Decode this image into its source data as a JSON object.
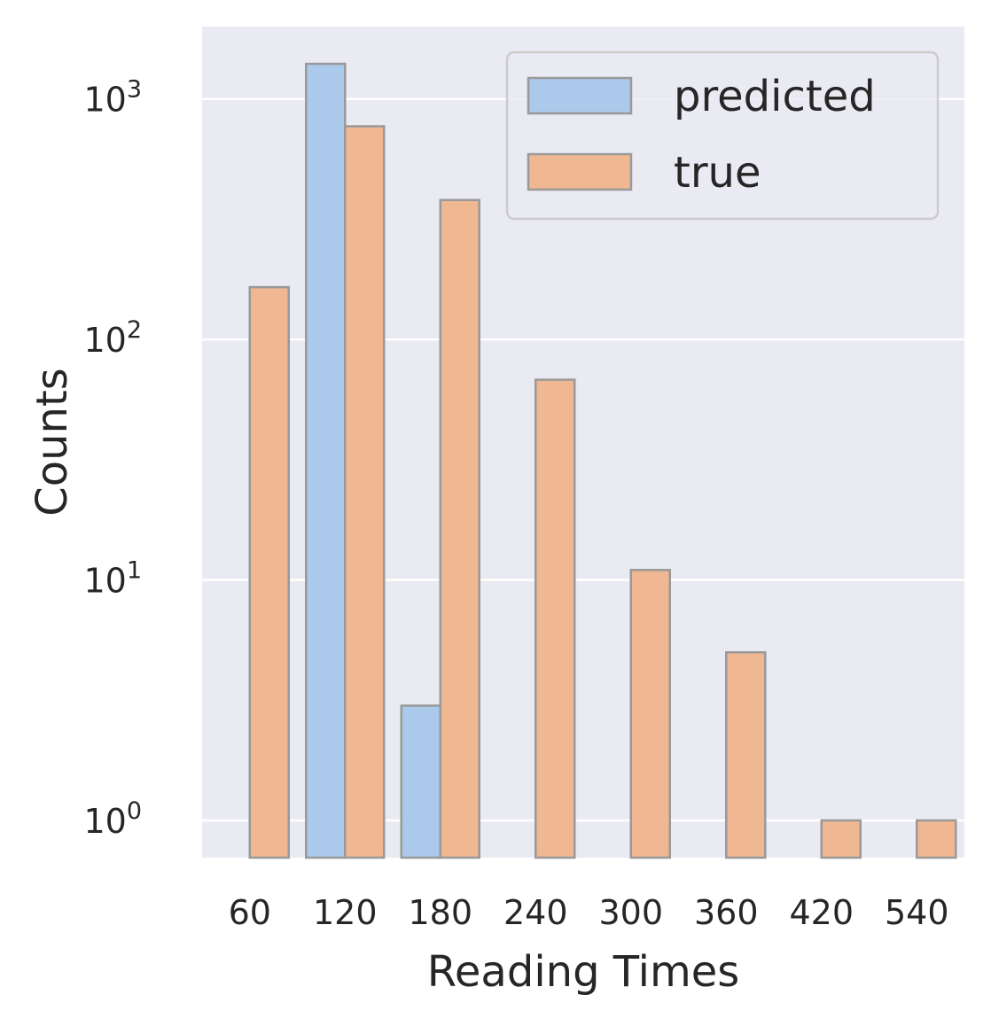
{
  "chart_data": {
    "type": "bar",
    "categories": [
      "60",
      "120",
      "180",
      "240",
      "300",
      "360",
      "420",
      "540"
    ],
    "series": [
      {
        "name": "predicted",
        "values": [
          0,
          1400,
          3,
          0,
          0,
          0,
          0,
          0
        ],
        "color": "#abc9ea"
      },
      {
        "name": "true",
        "values": [
          165,
          770,
          380,
          68,
          11,
          5,
          1,
          1
        ],
        "color": "#efb792"
      }
    ],
    "xlabel": "Reading Times",
    "ylabel": "Counts",
    "yscale": "log",
    "ylim": [
      0.7,
      2000
    ],
    "yticks": [
      {
        "value": 1,
        "base": "10",
        "exp": "0"
      },
      {
        "value": 10,
        "base": "10",
        "exp": "1"
      },
      {
        "value": 100,
        "base": "10",
        "exp": "2"
      },
      {
        "value": 1000,
        "base": "10",
        "exp": "3"
      }
    ],
    "grid": "horizontal",
    "legend": "top-right",
    "colors": {
      "background": "#eaeaf2",
      "grid": "#ffffff",
      "edge": "#999999"
    }
  }
}
